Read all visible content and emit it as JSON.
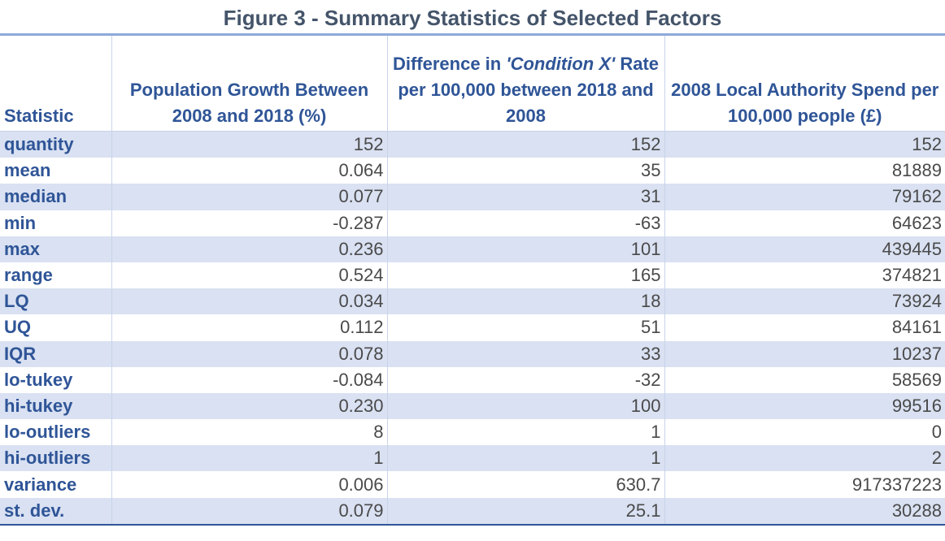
{
  "title": "Figure 3 - Summary Statistics of Selected Factors",
  "headers": {
    "statistic": "Statistic",
    "col1": "Population Growth Between 2008 and 2018 (%)",
    "col2_pre": "Difference in ",
    "col2_italic": "'Condition X'",
    "col2_post": " Rate per 100,000 between 2018 and 2008",
    "col3": "2008 Local Authority Spend per 100,000 people (£)"
  },
  "rows": [
    {
      "stat": "quantity",
      "pop": "152",
      "diff": "152",
      "spend": "152"
    },
    {
      "stat": "mean",
      "pop": "0.064",
      "diff": "35",
      "spend": "81889"
    },
    {
      "stat": "median",
      "pop": "0.077",
      "diff": "31",
      "spend": "79162"
    },
    {
      "stat": "min",
      "pop": "-0.287",
      "diff": "-63",
      "spend": "64623"
    },
    {
      "stat": "max",
      "pop": "0.236",
      "diff": "101",
      "spend": "439445"
    },
    {
      "stat": "range",
      "pop": "0.524",
      "diff": "165",
      "spend": "374821"
    },
    {
      "stat": "LQ",
      "pop": "0.034",
      "diff": "18",
      "spend": "73924"
    },
    {
      "stat": "UQ",
      "pop": "0.112",
      "diff": "51",
      "spend": "84161"
    },
    {
      "stat": "IQR",
      "pop": "0.078",
      "diff": "33",
      "spend": "10237"
    },
    {
      "stat": "lo-tukey",
      "pop": "-0.084",
      "diff": "-32",
      "spend": "58569"
    },
    {
      "stat": "hi-tukey",
      "pop": "0.230",
      "diff": "100",
      "spend": "99516"
    },
    {
      "stat": "lo-outliers",
      "pop": "8",
      "diff": "1",
      "spend": "0"
    },
    {
      "stat": "hi-outliers",
      "pop": "1",
      "diff": "1",
      "spend": "2"
    },
    {
      "stat": "variance",
      "pop": "0.006",
      "diff": "630.7",
      "spend": "917337223"
    },
    {
      "stat": "st. dev.",
      "pop": "0.079",
      "diff": "25.1",
      "spend": "30288"
    }
  ],
  "colors": {
    "title": "#44546a",
    "header": "#2f5597",
    "band": "#d9e1f2",
    "value": "#4a4a4a"
  }
}
